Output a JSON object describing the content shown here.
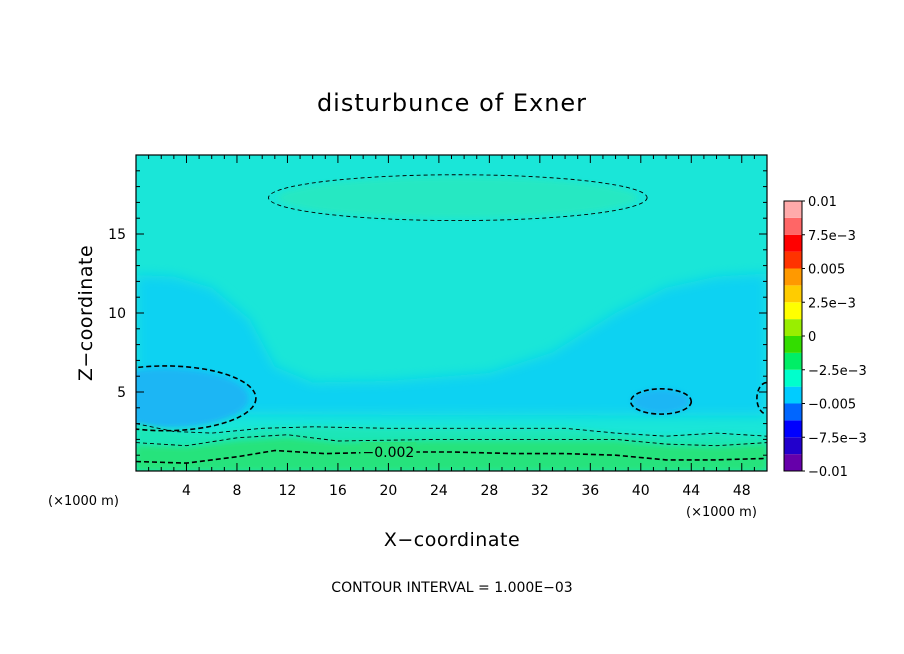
{
  "chart_data": {
    "type": "contour",
    "title": "disturbunce of Exner",
    "xlabel": "X−coordinate",
    "ylabel": "Z−coordinate",
    "x_unit_left": "(×1000 m)",
    "x_unit_right": "(×1000 m)",
    "xlim": [
      0,
      50
    ],
    "ylim": [
      0,
      20
    ],
    "xticks": [
      4,
      8,
      12,
      16,
      20,
      24,
      28,
      32,
      36,
      40,
      44,
      48
    ],
    "xtick_labels": [
      "4",
      "8",
      "12",
      "16",
      "20",
      "24",
      "28",
      "32",
      "36",
      "40",
      "44",
      "48"
    ],
    "yticks": [
      5,
      10,
      15
    ],
    "ytick_labels": [
      "5",
      "10",
      "15"
    ],
    "contour_interval_note": "CONTOUR INTERVAL = 1.000E−03",
    "contour_label": "−0.002",
    "contour_label_pos": [
      20,
      1.2
    ],
    "colorbar": {
      "levels": [
        -0.01,
        -0.0075,
        -0.005,
        -0.0025,
        0,
        0.0025,
        0.005,
        0.0075,
        0.01
      ],
      "labels": [
        "−0.01",
        "−7.5e−3",
        "−0.005",
        "−2.5e−3",
        "0",
        "2.5e−3",
        "0.005",
        "7.5e−3",
        "0.01"
      ],
      "colors": [
        "#6600aa",
        "#2200cc",
        "#0000ff",
        "#0066ff",
        "#00ccff",
        "#00ffcc",
        "#00ee66",
        "#33dd00",
        "#99ee00",
        "#ffff00",
        "#ffcc00",
        "#ff9900",
        "#ff3300",
        "#ff0000",
        "#ff6666",
        "#ffaaaa"
      ]
    },
    "filled_regions": [
      {
        "name": "background",
        "value": -0.0015,
        "color": "#1ae6d8"
      },
      {
        "name": "upper-anomaly",
        "value": -0.0012,
        "color": "#26e8c2"
      },
      {
        "name": "mid-low-pressure",
        "value": -0.0028,
        "color": "#0ed2f2"
      },
      {
        "name": "left-min",
        "value": -0.0042,
        "color": "#1bb6f4"
      },
      {
        "name": "right-min",
        "value": -0.0042,
        "color": "#1bb6f4"
      },
      {
        "name": "lower-band",
        "value": -0.002,
        "color": "#1fe6b8"
      },
      {
        "name": "surface-layer",
        "value": -0.0005,
        "color": "#27e37c"
      }
    ],
    "contours": [
      {
        "name": "upper-ellipse",
        "style": "thin-dash",
        "center": [
          25.5,
          17.3
        ],
        "radii": [
          15,
          1.45
        ]
      },
      {
        "name": "left-min-contour",
        "style": "bold-dash",
        "center": [
          2.3,
          4.6
        ],
        "radii": [
          7.2,
          2.05
        ]
      },
      {
        "name": "right-min-contour",
        "style": "bold-dash",
        "center": [
          41.6,
          4.4
        ],
        "radii": [
          2.4,
          0.8
        ]
      },
      {
        "name": "edge-min-contour",
        "style": "bold-dash",
        "center": [
          50,
          4.6
        ],
        "radii": [
          0.8,
          1.0
        ]
      },
      {
        "name": "lower-thin-contour",
        "style": "thin-dash",
        "points": [
          [
            0,
            3.0
          ],
          [
            3,
            2.5
          ],
          [
            6,
            2.4
          ],
          [
            10,
            2.7
          ],
          [
            14,
            2.8
          ],
          [
            20,
            2.7
          ],
          [
            28,
            2.7
          ],
          [
            34,
            2.7
          ],
          [
            38,
            2.4
          ],
          [
            42,
            2.2
          ],
          [
            46,
            2.4
          ],
          [
            50,
            2.2
          ]
        ]
      },
      {
        "name": "lower-mid-contour",
        "style": "thin-dash",
        "points": [
          [
            0,
            1.8
          ],
          [
            4,
            1.6
          ],
          [
            8,
            2.1
          ],
          [
            12,
            2.3
          ],
          [
            16,
            1.9
          ],
          [
            24,
            2.0
          ],
          [
            32,
            2.0
          ],
          [
            38,
            2.0
          ],
          [
            42,
            1.7
          ],
          [
            46,
            1.6
          ],
          [
            50,
            1.8
          ]
        ]
      },
      {
        "name": "minus-0-002-contour",
        "style": "bold-dash",
        "points": [
          [
            0,
            0.6
          ],
          [
            4,
            0.5
          ],
          [
            8,
            0.9
          ],
          [
            11,
            1.3
          ],
          [
            15,
            1.1
          ],
          [
            20,
            1.2
          ],
          [
            25,
            1.2
          ],
          [
            30,
            1.1
          ],
          [
            34,
            1.1
          ],
          [
            38,
            1.0
          ],
          [
            42,
            0.7
          ],
          [
            46,
            0.7
          ],
          [
            50,
            0.8
          ]
        ]
      }
    ]
  }
}
